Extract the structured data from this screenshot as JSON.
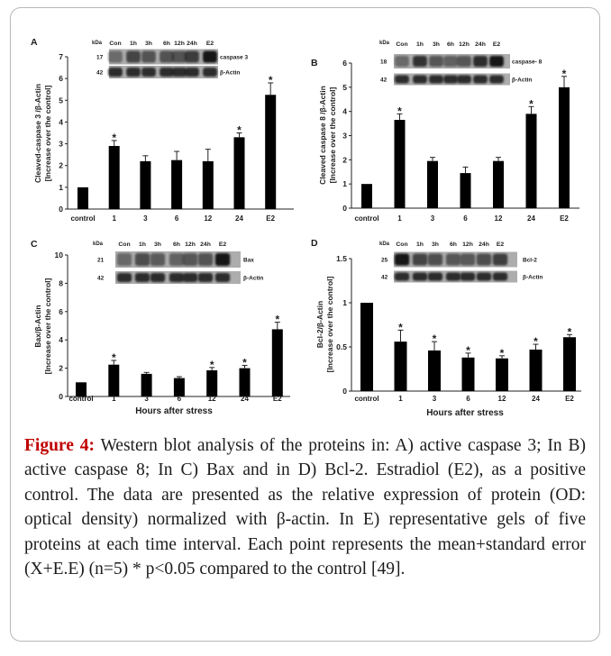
{
  "colors": {
    "bar": "#000000",
    "figure_label": "#c00000",
    "blot_background": "#adadad",
    "blot_band": "#151515"
  },
  "chart_data": [
    {
      "type": "bar",
      "panel_label": "A",
      "categories": [
        "control",
        "1",
        "3",
        "6",
        "12",
        "24",
        "E2"
      ],
      "values": [
        1,
        2.9,
        2.2,
        2.25,
        2.2,
        3.3,
        5.25
      ],
      "errors": [
        0,
        0.25,
        0.25,
        0.4,
        0.55,
        0.2,
        0.55
      ],
      "significant": [
        false,
        true,
        false,
        false,
        false,
        true,
        true
      ],
      "significance_marker": "*",
      "ylabel": [
        "Cleaved-caspase 3 /β-Actin",
        "[Increase over the control]"
      ],
      "xlabel": "",
      "ylim": [
        0,
        7
      ],
      "yticks": [
        "0",
        "1",
        "2",
        "3",
        "4",
        "5",
        "6",
        "7"
      ],
      "grid": false,
      "blot": {
        "kda_label": "kDa",
        "lanes": [
          "Con",
          "1h",
          "3h",
          "6h",
          "12h",
          "24h",
          "E2"
        ],
        "rows": [
          {
            "kda": "17",
            "protein": "caspase 3"
          },
          {
            "kda": "42",
            "protein": "β-Actin"
          }
        ]
      }
    },
    {
      "type": "bar",
      "panel_label": "B",
      "categories": [
        "control",
        "1",
        "3",
        "6",
        "12",
        "24",
        "E2"
      ],
      "values": [
        1,
        3.65,
        1.95,
        1.45,
        1.95,
        3.9,
        5.0
      ],
      "errors": [
        0,
        0.25,
        0.15,
        0.25,
        0.15,
        0.3,
        0.45
      ],
      "significant": [
        false,
        true,
        false,
        false,
        false,
        true,
        true
      ],
      "significance_marker": "*",
      "ylabel": [
        "Cleaved caspase 8 /β-Actin",
        "[Increase over the control]"
      ],
      "xlabel": "",
      "ylim": [
        0,
        6
      ],
      "yticks": [
        "0",
        "1",
        "2",
        "3",
        "4",
        "5",
        "6"
      ],
      "grid": false,
      "blot": {
        "kda_label": "kDa",
        "lanes": [
          "Con",
          "1h",
          "3h",
          "6h",
          "12h",
          "24h",
          "E2"
        ],
        "rows": [
          {
            "kda": "18",
            "protein": "caspase- 8"
          },
          {
            "kda": "42",
            "protein": "β-Actin"
          }
        ]
      }
    },
    {
      "type": "bar",
      "panel_label": "C",
      "categories": [
        "control",
        "1",
        "3",
        "6",
        "12",
        "24",
        "E2"
      ],
      "values": [
        1,
        2.25,
        1.6,
        1.3,
        1.85,
        2.0,
        4.75
      ],
      "errors": [
        0,
        0.3,
        0.1,
        0.1,
        0.2,
        0.2,
        0.5
      ],
      "significant": [
        false,
        true,
        false,
        false,
        true,
        true,
        true
      ],
      "significance_marker": "*",
      "ylabel": [
        "Bax/β-Actin",
        "[Increase over the control]"
      ],
      "xlabel": "Hours after stress",
      "ylim": [
        0,
        10
      ],
      "yticks": [
        "0",
        "2",
        "4",
        "6",
        "8",
        "10"
      ],
      "grid": false,
      "blot": {
        "kda_label": "kDa",
        "lanes": [
          "Con",
          "1h",
          "3h",
          "6h",
          "12h",
          "24h",
          "E2"
        ],
        "rows": [
          {
            "kda": "21",
            "protein": "Bax"
          },
          {
            "kda": "42",
            "protein": "β-Actin"
          }
        ]
      }
    },
    {
      "type": "bar",
      "panel_label": "D",
      "categories": [
        "control",
        "1",
        "3",
        "6",
        "12",
        "24",
        "E2"
      ],
      "values": [
        1,
        0.56,
        0.46,
        0.38,
        0.37,
        0.47,
        0.61
      ],
      "errors": [
        0,
        0.13,
        0.1,
        0.05,
        0.03,
        0.06,
        0.03
      ],
      "significant": [
        false,
        true,
        true,
        true,
        true,
        true,
        true
      ],
      "significance_marker": "*",
      "ylabel": [
        "Bcl-2/β-Actin",
        "[Increase over the control]"
      ],
      "xlabel": "Hours after stress",
      "ylim": [
        0,
        1.5
      ],
      "yticks": [
        "0",
        "0.5",
        "1",
        "1.5"
      ],
      "grid": false,
      "blot": {
        "kda_label": "kDa",
        "lanes": [
          "Con",
          "1h",
          "3h",
          "6h",
          "12h",
          "24h",
          "E2"
        ],
        "rows": [
          {
            "kda": "25",
            "protein": "Bcl-2"
          },
          {
            "kda": "42",
            "protein": "β-Actin"
          }
        ]
      }
    }
  ],
  "caption": {
    "label": "Figure 4:",
    "text": "Western blot analysis of the proteins in: A) active caspase 3; In B) active caspase 8; In C) Bax and in D) Bcl-2. Estradiol (E2), as a positive control. The data are presented as the relative expression of protein (OD: optical density) normalized with β-actin. In E) representative gels of five proteins at each time interval. Each point represents the mean+standard error (X+E.E) (n=5) * p<0.05 compared to the control [49]."
  }
}
